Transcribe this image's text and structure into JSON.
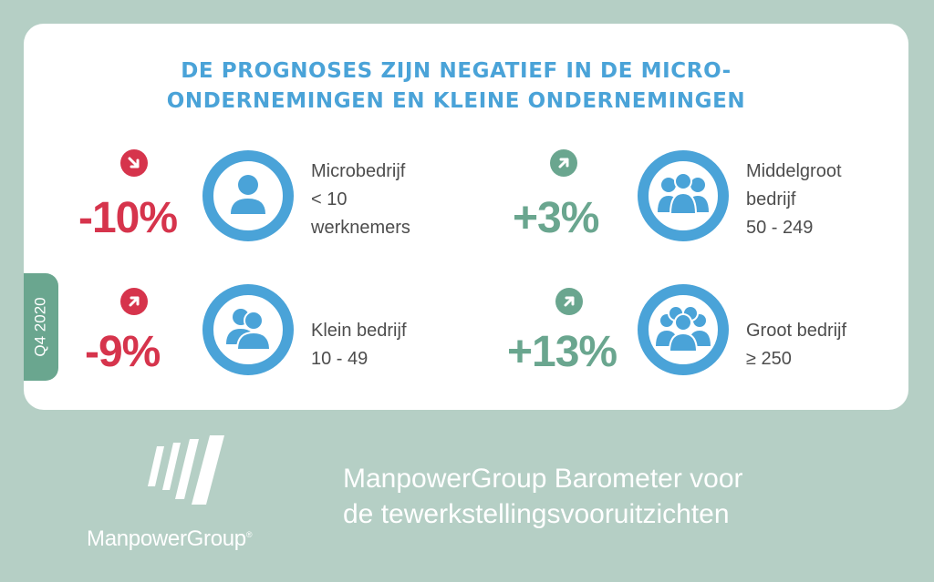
{
  "headline": {
    "line1": "DE PROGNOSES ZIJN NEGATIEF IN DE MICRO-",
    "line2": "ONDERNEMINGEN EN KLEINE ONDERNEMINGEN"
  },
  "period_tab": "Q4 2020",
  "segments": [
    {
      "percent": "-10%",
      "trend": "down",
      "label_lines": [
        "Microbedrijf",
        "< 10",
        "werknemers"
      ],
      "icon": "single-person-icon"
    },
    {
      "percent": "+3%",
      "trend": "up",
      "label_lines": [
        "Middelgroot",
        "bedrijf",
        "50 - 249"
      ],
      "icon": "group-of-four-icon"
    },
    {
      "percent": "-9%",
      "trend": "up",
      "label_lines": [
        "Klein bedrijf",
        "10 - 49"
      ],
      "icon": "two-people-icon"
    },
    {
      "percent": "+13%",
      "trend": "up",
      "label_lines": [
        "Groot bedrijf",
        "≥ 250"
      ],
      "icon": "large-group-icon"
    }
  ],
  "colors": {
    "background": "#b5cfc5",
    "headline": "#4aa3d8",
    "negative": "#d6344c",
    "positive": "#6aa68f",
    "icon_blue": "#4aa3d8"
  },
  "footer": {
    "logo_text": "ManpowerGroup",
    "logo_registered": "®",
    "title_line1": "ManpowerGroup Barometer voor",
    "title_line2": "de tewerkstellingsvooruitzichten"
  }
}
